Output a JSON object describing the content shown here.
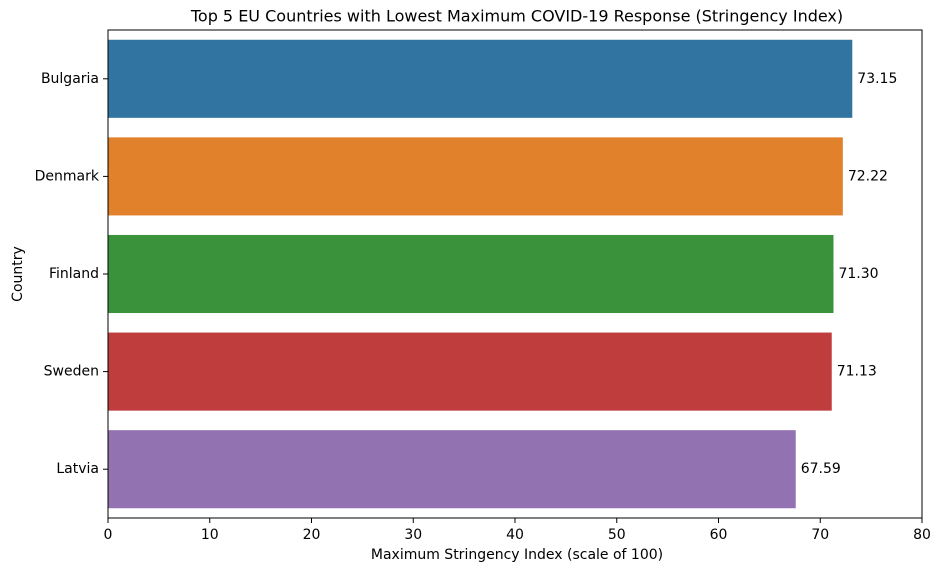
{
  "chart_data": {
    "type": "barh",
    "title": "Top 5 EU Countries with Lowest Maximum COVID-19 Response (Stringency Index)",
    "xlabel": "Maximum Stringency Index (scale of 100)",
    "ylabel": "Country",
    "categories": [
      "Bulgaria",
      "Denmark",
      "Finland",
      "Sweden",
      "Latvia"
    ],
    "values": [
      73.15,
      72.22,
      71.3,
      71.13,
      67.59
    ],
    "value_labels": [
      "73.15",
      "72.22",
      "71.30",
      "71.13",
      "67.59"
    ],
    "colors": [
      "#3274a1",
      "#e1812c",
      "#3a923a",
      "#c03d3e",
      "#9372b2"
    ],
    "xlim": [
      0,
      80
    ],
    "xticks": [
      0,
      10,
      20,
      30,
      40,
      50,
      60,
      70,
      80
    ]
  }
}
